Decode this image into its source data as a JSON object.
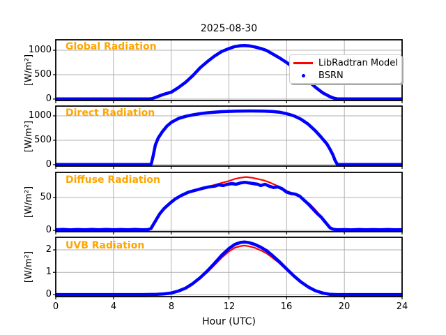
{
  "title": "2025-08-30",
  "xlabel": "Hour (UTC)",
  "legend": {
    "model_label": "LibRadtran Model",
    "obs_label": "BSRN"
  },
  "colors": {
    "model": "#FF0000",
    "obs": "#0000FF",
    "panel_label": "#FFA500",
    "grid": "#B0B0B0",
    "spine": "#000000"
  },
  "chart_data": [
    {
      "type": "line",
      "panel_label": "Global Radiation",
      "ylabel": "[W/m²]",
      "xlim": [
        0,
        24
      ],
      "ylim": [
        -30,
        1215
      ],
      "xticks": [
        0,
        4,
        8,
        12,
        16,
        20,
        24
      ],
      "yticks": [
        0,
        500,
        1000
      ],
      "ytick_labels": [
        "0",
        "500",
        "1000"
      ],
      "grid": true,
      "series": [
        {
          "name": "LibRadtran Model",
          "color": "#FF0000",
          "x": [
            0,
            1,
            2,
            3,
            4,
            5,
            6,
            6.5,
            6.7,
            7,
            7.3,
            7.6,
            8,
            8.5,
            9,
            9.5,
            10,
            10.5,
            11,
            11.5,
            12,
            12.4,
            12.8,
            13.1,
            13.4,
            13.8,
            14.2,
            14.6,
            15,
            15.5,
            16,
            16.5,
            17,
            17.5,
            18,
            18.5,
            19,
            19.3,
            19.5,
            19.7,
            20,
            21,
            22,
            23,
            24
          ],
          "y": [
            2,
            2,
            2,
            2,
            2,
            2,
            2,
            3,
            10,
            45,
            78,
            108,
            140,
            235,
            345,
            480,
            640,
            765,
            880,
            975,
            1035,
            1075,
            1093,
            1097,
            1090,
            1068,
            1038,
            998,
            930,
            845,
            748,
            640,
            500,
            370,
            240,
            128,
            48,
            14,
            4,
            2,
            2,
            2,
            2,
            2,
            2
          ]
        },
        {
          "name": "BSRN",
          "color": "#0000FF",
          "x": [
            0,
            1,
            2,
            3,
            4,
            5,
            6,
            6.5,
            6.7,
            7,
            7.3,
            7.6,
            8,
            8.5,
            9,
            9.5,
            10,
            10.5,
            11,
            11.5,
            12,
            12.4,
            12.8,
            13.1,
            13.4,
            13.8,
            14.2,
            14.6,
            15,
            15.5,
            16,
            16.5,
            17,
            17.5,
            18,
            18.5,
            19,
            19.3,
            19.5,
            19.7,
            20,
            21,
            22,
            23,
            24
          ],
          "y": [
            2,
            2,
            2,
            2,
            2,
            2,
            2,
            3,
            10,
            45,
            78,
            108,
            140,
            235,
            345,
            480,
            640,
            765,
            880,
            975,
            1035,
            1075,
            1093,
            1097,
            1090,
            1068,
            1038,
            998,
            930,
            845,
            748,
            640,
            500,
            370,
            240,
            128,
            48,
            14,
            4,
            2,
            2,
            2,
            2,
            2,
            2
          ]
        }
      ]
    },
    {
      "type": "line",
      "panel_label": "Direct Radiation",
      "ylabel": "[W/m²]",
      "xlim": [
        0,
        24
      ],
      "ylim": [
        -30,
        1200
      ],
      "xticks": [
        0,
        4,
        8,
        12,
        16,
        20,
        24
      ],
      "yticks": [
        0,
        500,
        1000
      ],
      "ytick_labels": [
        "0",
        "500",
        "1000"
      ],
      "grid": true,
      "series": [
        {
          "name": "LibRadtran Model",
          "color": "#FF0000",
          "x": [
            0,
            2,
            4,
            6,
            6.5,
            6.62,
            6.75,
            6.9,
            7.1,
            7.4,
            7.7,
            8,
            8.5,
            9,
            9.5,
            10,
            10.5,
            11,
            11.5,
            12,
            12.5,
            13,
            13.5,
            14,
            14.5,
            15,
            15.5,
            16,
            16.5,
            17,
            17.5,
            18,
            18.4,
            18.8,
            19,
            19.2,
            19.35,
            19.5,
            19.6,
            20,
            22,
            24
          ],
          "y": [
            2,
            2,
            2,
            2,
            2,
            15,
            180,
            400,
            545,
            680,
            790,
            865,
            945,
            990,
            1020,
            1045,
            1062,
            1075,
            1085,
            1092,
            1097,
            1099,
            1100,
            1099,
            1096,
            1089,
            1075,
            1044,
            1000,
            930,
            828,
            690,
            560,
            420,
            318,
            205,
            90,
            12,
            2,
            2,
            2,
            2
          ]
        },
        {
          "name": "BSRN",
          "color": "#0000FF",
          "x": [
            0,
            2,
            4,
            6,
            6.5,
            6.62,
            6.75,
            6.9,
            7.1,
            7.4,
            7.7,
            8,
            8.5,
            9,
            9.5,
            10,
            10.5,
            11,
            11.5,
            12,
            12.5,
            13,
            13.5,
            14,
            14.5,
            15,
            15.5,
            16,
            16.5,
            17,
            17.5,
            18,
            18.4,
            18.8,
            19,
            19.2,
            19.35,
            19.5,
            19.6,
            20,
            22,
            24
          ],
          "y": [
            2,
            2,
            2,
            2,
            2,
            15,
            180,
            400,
            545,
            680,
            790,
            865,
            945,
            990,
            1020,
            1045,
            1062,
            1075,
            1085,
            1092,
            1097,
            1099,
            1100,
            1099,
            1096,
            1089,
            1075,
            1044,
            1000,
            930,
            828,
            690,
            560,
            420,
            318,
            205,
            90,
            12,
            2,
            2,
            2,
            2
          ]
        }
      ]
    },
    {
      "type": "line",
      "panel_label": "Diffuse Radiation",
      "ylabel": "[W/m²]",
      "xlim": [
        0,
        24
      ],
      "ylim": [
        -2,
        88
      ],
      "xticks": [
        0,
        4,
        8,
        12,
        16,
        20,
        24
      ],
      "yticks": [
        0,
        50
      ],
      "ytick_labels": [
        "0",
        "50"
      ],
      "grid": true,
      "series": [
        {
          "name": "LibRadtran Model",
          "color": "#FF0000",
          "x": [
            0,
            1,
            2,
            3,
            4,
            5,
            6,
            6.5,
            6.9,
            7.2,
            7.6,
            8,
            8.5,
            9,
            9.5,
            10,
            10.5,
            11,
            11.5,
            12,
            12.4,
            12.8,
            13.2,
            13.6,
            14,
            14.4,
            14.8,
            15.2,
            15.6,
            16,
            16.4,
            16.8,
            17.2,
            17.6,
            18,
            18.4,
            18.7,
            19,
            19.3,
            19.6,
            20,
            21,
            22,
            23,
            24
          ],
          "y": [
            0.8,
            0.8,
            0.8,
            0.8,
            0.8,
            0.8,
            0.8,
            1.5,
            15,
            26,
            35,
            43,
            50,
            56,
            60,
            63,
            66,
            69,
            72,
            75,
            78,
            80,
            81,
            80,
            78,
            76,
            73,
            69,
            65,
            60,
            56,
            52,
            46,
            40,
            31,
            21,
            13,
            4,
            1.2,
            0.8,
            0.8,
            0.8,
            0.8,
            0.8,
            0.8
          ]
        },
        {
          "name": "BSRN",
          "color": "#0000FF",
          "x": [
            0,
            0.5,
            1,
            1.5,
            2,
            2.5,
            3,
            3.5,
            4,
            4.5,
            5,
            5.5,
            6,
            6.4,
            6.6,
            6.9,
            7.2,
            7.5,
            7.9,
            8.3,
            8.7,
            9.2,
            9.7,
            10.2,
            10.6,
            11,
            11.3,
            11.6,
            11.9,
            12.2,
            12.5,
            12.8,
            13.1,
            13.4,
            13.7,
            14,
            14.2,
            14.5,
            14.8,
            15.1,
            15.4,
            15.7,
            16,
            16.3,
            16.6,
            16.9,
            17.2,
            17.5,
            17.8,
            18.1,
            18.4,
            18.7,
            19,
            19.2,
            19.4,
            19.6,
            20,
            20.5,
            21,
            21.5,
            22,
            22.5,
            23,
            23.5,
            24
          ],
          "y": [
            1,
            1.5,
            0.8,
            1.3,
            0.9,
            1.4,
            1,
            1.5,
            0.9,
            1.3,
            1,
            1.4,
            1,
            1.2,
            3,
            14,
            25,
            33,
            41,
            48,
            53,
            58,
            61,
            64,
            66,
            67,
            69,
            68,
            70,
            71,
            70,
            72,
            73,
            72,
            71,
            70,
            68,
            70,
            67,
            65,
            66,
            63,
            58,
            56,
            55,
            52,
            46,
            40,
            33,
            26,
            20,
            12,
            4,
            1.8,
            1.2,
            1,
            1.2,
            0.8,
            1.3,
            0.9,
            1.2,
            1,
            1.3,
            0.9,
            1.1
          ]
        }
      ]
    },
    {
      "type": "line",
      "panel_label": "UVB Radiation",
      "ylabel": "[W/m²]",
      "xlim": [
        0,
        24
      ],
      "ylim": [
        -0.08,
        2.56
      ],
      "xticks": [
        0,
        4,
        8,
        12,
        16,
        20,
        24
      ],
      "xtick_labels": [
        "0",
        "4",
        "8",
        "12",
        "16",
        "20",
        "24"
      ],
      "yticks": [
        0,
        1,
        2
      ],
      "ytick_labels": [
        "0",
        "1",
        "2"
      ],
      "grid": true,
      "series": [
        {
          "name": "LibRadtran Model",
          "color": "#FF0000",
          "x": [
            0,
            2,
            4,
            6,
            7,
            7.5,
            8,
            8.5,
            9,
            9.5,
            10,
            10.5,
            11,
            11.5,
            12,
            12.4,
            12.8,
            13.1,
            13.4,
            13.8,
            14.2,
            14.6,
            15,
            15.5,
            16,
            16.5,
            17,
            17.5,
            18,
            18.5,
            19,
            19.5,
            20,
            22,
            24
          ],
          "y": [
            0.01,
            0.01,
            0.01,
            0.01,
            0.02,
            0.04,
            0.08,
            0.16,
            0.28,
            0.47,
            0.72,
            1.0,
            1.32,
            1.65,
            1.93,
            2.09,
            2.17,
            2.19,
            2.16,
            2.09,
            1.98,
            1.85,
            1.66,
            1.4,
            1.1,
            0.81,
            0.55,
            0.34,
            0.17,
            0.08,
            0.02,
            0.01,
            0.01,
            0.01,
            0.01
          ]
        },
        {
          "name": "BSRN",
          "color": "#0000FF",
          "x": [
            0,
            2,
            4,
            6,
            7,
            7.5,
            8,
            8.5,
            9,
            9.5,
            10,
            10.5,
            11,
            11.5,
            12,
            12.4,
            12.8,
            13.1,
            13.4,
            13.8,
            14.2,
            14.6,
            15,
            15.5,
            16,
            16.5,
            17,
            17.5,
            18,
            18.5,
            19,
            19.5,
            20,
            22,
            24
          ],
          "y": [
            0.01,
            0.01,
            0.01,
            0.01,
            0.02,
            0.04,
            0.08,
            0.17,
            0.3,
            0.5,
            0.76,
            1.06,
            1.4,
            1.76,
            2.06,
            2.24,
            2.33,
            2.35,
            2.32,
            2.24,
            2.12,
            1.97,
            1.76,
            1.47,
            1.15,
            0.84,
            0.57,
            0.35,
            0.18,
            0.08,
            0.02,
            0.01,
            0.01,
            0.01,
            0.01
          ]
        }
      ]
    }
  ]
}
